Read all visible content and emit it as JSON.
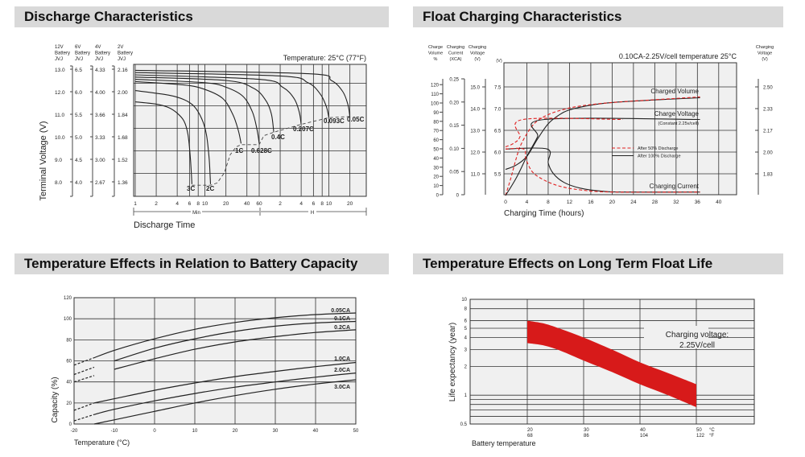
{
  "panels": [
    {
      "title": "Discharge Characteristics"
    },
    {
      "title": "Float Charging Characteristics"
    },
    {
      "title": "Temperature Effects in Relation to Battery Capacity"
    },
    {
      "title": "Temperature Effects on Long Term Float Life"
    }
  ],
  "colors": {
    "header_bg": "#d9d9d9",
    "plot_bg": "#f0f0f0",
    "grid": "#333333",
    "accent_red": "#e02020",
    "band_red": "#d71a1a"
  },
  "chart_data": [
    {
      "type": "line",
      "title": "Discharge Characteristics",
      "annotation": "Temperature: 25°C (77°F)",
      "xlabel": "Discharge Time",
      "ylabel": "Terminal Voltage (V)",
      "x_scale": "log",
      "x_unit": "minutes",
      "x_ticks_min": [
        "1",
        "2",
        "4",
        "6",
        "8",
        "10",
        "20",
        "40",
        "60"
      ],
      "x_ticks_h": [
        "2",
        "4",
        "6",
        "8",
        "10",
        "20"
      ],
      "x_range_labels": {
        "min": "Min",
        "h": "H"
      },
      "ylim": [
        7.4,
        13.2
      ],
      "grid": true,
      "y_axes": [
        {
          "header": [
            "12V",
            "Battery",
            "JVJ"
          ],
          "ticks": [
            "13.0",
            "12.0",
            "11.0",
            "10.0",
            "9.0",
            "8.0"
          ]
        },
        {
          "header": [
            "6V",
            "Battery",
            "JVJ"
          ],
          "ticks": [
            "6.5",
            "6.0",
            "5.5",
            "5.0",
            "4.5",
            "4.0"
          ]
        },
        {
          "header": [
            "4V",
            "Battery",
            "JVJ"
          ],
          "ticks": [
            "4.33",
            "4.00",
            "3.66",
            "3.33",
            "3.00",
            "2.67"
          ]
        },
        {
          "header": [
            "2V",
            "Battery",
            "JVJ"
          ],
          "ticks": [
            "2.16",
            "2.00",
            "1.84",
            "1.68",
            "1.52",
            "1.36"
          ]
        }
      ],
      "series": [
        {
          "name": "3C",
          "points": [
            [
              1,
              11.55
            ],
            [
              2,
              11.45
            ],
            [
              3,
              11.3
            ],
            [
              4,
              11.05
            ],
            [
              5,
              10.7
            ],
            [
              5.7,
              10.1
            ],
            [
              6.2,
              9.0
            ],
            [
              6.5,
              7.9
            ]
          ]
        },
        {
          "name": "2C",
          "points": [
            [
              1,
              12.05
            ],
            [
              3,
              11.85
            ],
            [
              5,
              11.65
            ],
            [
              7,
              11.35
            ],
            [
              9,
              10.8
            ],
            [
              10.5,
              10.1
            ],
            [
              11.5,
              9.0
            ],
            [
              12,
              7.9
            ]
          ]
        },
        {
          "name": "1C",
          "points": [
            [
              1,
              12.45
            ],
            [
              5,
              12.3
            ],
            [
              10,
              12.1
            ],
            [
              18,
              11.7
            ],
            [
              25,
              11.0
            ],
            [
              30,
              10.3
            ],
            [
              33,
              9.7
            ]
          ]
        },
        {
          "name": "0.628C",
          "points": [
            [
              1,
              12.55
            ],
            [
              10,
              12.4
            ],
            [
              20,
              12.2
            ],
            [
              35,
              11.8
            ],
            [
              48,
              11.1
            ],
            [
              56,
              10.3
            ],
            [
              60,
              9.7
            ]
          ]
        },
        {
          "name": "0.4C",
          "points": [
            [
              1,
              12.65
            ],
            [
              20,
              12.5
            ],
            [
              50,
              12.15
            ],
            [
              75,
              11.6
            ],
            [
              90,
              11.0
            ],
            [
              97,
              10.2
            ]
          ]
        },
        {
          "name": "0.207C",
          "points": [
            [
              1,
              12.75
            ],
            [
              60,
              12.55
            ],
            [
              130,
              12.2
            ],
            [
              190,
              11.7
            ],
            [
              225,
              11.1
            ],
            [
              240,
              10.55
            ]
          ]
        },
        {
          "name": "0.093C",
          "points": [
            [
              1,
              12.85
            ],
            [
              120,
              12.7
            ],
            [
              300,
              12.4
            ],
            [
              450,
              11.9
            ],
            [
              550,
              11.35
            ],
            [
              600,
              10.85
            ]
          ]
        },
        {
          "name": "0.05C",
          "points": [
            [
              1,
              12.95
            ],
            [
              300,
              12.8
            ],
            [
              650,
              12.5
            ],
            [
              950,
              12.0
            ],
            [
              1130,
              11.4
            ],
            [
              1200,
              10.85
            ]
          ]
        }
      ],
      "cutoff_line": [
        [
          6.5,
          7.85
        ],
        [
          12,
          7.85
        ],
        [
          15,
          7.95
        ],
        [
          19,
          8.4
        ],
        [
          23,
          9.2
        ],
        [
          28,
          9.55
        ],
        [
          33,
          9.65
        ],
        [
          60,
          9.65
        ],
        [
          70,
          10.05
        ],
        [
          97,
          10.2
        ],
        [
          240,
          10.55
        ],
        [
          600,
          10.85
        ],
        [
          1200,
          10.9
        ]
      ]
    },
    {
      "type": "line",
      "title": "Float Charging Characteristics",
      "annotation": "0.10CA-2.25V/cell  temperature 25°C",
      "xlabel": "Charging Time (hours)",
      "x_ticks": [
        0,
        4,
        8,
        12,
        16,
        20,
        24,
        28,
        32,
        36,
        40
      ],
      "xlim": [
        0,
        44
      ],
      "ylim": [
        5.0,
        7.75
      ],
      "grid": true,
      "left_axes": [
        {
          "header": [
            "Charge",
            "Volume",
            "%"
          ],
          "ticks": [
            "0",
            "10",
            "20",
            "30",
            "40",
            "50",
            "60",
            "70",
            "80",
            "90",
            "100",
            "110",
            "120"
          ]
        },
        {
          "header": [
            "Charging",
            "Current",
            "(XCA)"
          ],
          "ticks": [
            "0",
            "0.05",
            "0.10",
            "0.15",
            "0.20",
            "0.25"
          ]
        },
        {
          "header": [
            "Charging",
            "Voltage",
            "(V)"
          ],
          "ticks": [
            "11.0",
            "12.0",
            "13.0",
            "14.0",
            "15.0"
          ]
        },
        {
          "header": [
            "(V)"
          ],
          "ticks": [
            "5.5",
            "6.0",
            "6.5",
            "7.0",
            "7.5"
          ]
        }
      ],
      "right_axis": {
        "header": [
          "Charging",
          "Voltage",
          "(V)"
        ],
        "ticks": [
          "1.83",
          "2.00",
          "2.17",
          "2.33",
          "2.50"
        ]
      },
      "curve_labels": [
        "Charged Volume",
        "Charge Voltage",
        "(Constant 2.25v/cell)",
        "Charging Current"
      ],
      "legend": [
        {
          "name": "After  50% Discharge",
          "color": "#e02020",
          "style": "dashed"
        },
        {
          "name": "After 100% Discharge",
          "color": "#222222",
          "style": "solid"
        }
      ],
      "series": [
        {
          "curve": "Charged Volume",
          "case": "After 100% Discharge",
          "points": [
            [
              0,
              5.6
            ],
            [
              2,
              5.7
            ],
            [
              4,
              5.9
            ],
            [
              6,
              6.3
            ],
            [
              8,
              6.65
            ],
            [
              10,
              6.85
            ],
            [
              12,
              6.97
            ],
            [
              16,
              7.08
            ],
            [
              20,
              7.14
            ],
            [
              28,
              7.2
            ],
            [
              36.5,
              7.25
            ]
          ]
        },
        {
          "curve": "Charged Volume",
          "case": "After  50% Discharge",
          "points": [
            [
              0,
              5.0
            ],
            [
              1,
              5.4
            ],
            [
              2,
              5.85
            ],
            [
              3,
              6.2
            ],
            [
              5,
              6.6
            ],
            [
              7,
              6.8
            ],
            [
              10,
              6.95
            ],
            [
              14,
              7.06
            ],
            [
              20,
              7.14
            ],
            [
              30,
              7.22
            ],
            [
              36.5,
              7.27
            ]
          ]
        },
        {
          "curve": "Charge Voltage",
          "case": "After 100% Discharge",
          "points": [
            [
              0,
              5.0
            ],
            [
              2,
              5.4
            ],
            [
              4,
              5.9
            ],
            [
              6,
              6.35
            ],
            [
              7.3,
              6.75
            ],
            [
              36.5,
              6.75
            ]
          ]
        },
        {
          "curve": "Charge Voltage",
          "case": "After  50% Discharge",
          "points": [
            [
              0,
              6.12
            ],
            [
              1.5,
              6.2
            ],
            [
              2.7,
              6.35
            ],
            [
              3.3,
              6.75
            ],
            [
              22,
              6.75
            ]
          ]
        },
        {
          "curve": "Charging Current",
          "case": "After 100% Discharge",
          "points": [
            [
              0,
              6.07
            ],
            [
              7.8,
              6.07
            ],
            [
              8,
              5.75
            ],
            [
              9,
              5.5
            ],
            [
              11,
              5.3
            ],
            [
              14,
              5.17
            ],
            [
              18,
              5.1
            ],
            [
              22,
              5.08
            ],
            [
              36.5,
              5.08
            ]
          ]
        },
        {
          "curve": "Charging Current",
          "case": "After  50% Discharge",
          "points": [
            [
              0,
              6.07
            ],
            [
              3.4,
              6.07
            ],
            [
              3.8,
              5.85
            ],
            [
              5,
              5.55
            ],
            [
              7,
              5.37
            ],
            [
              10,
              5.22
            ],
            [
              14,
              5.13
            ],
            [
              20,
              5.08
            ],
            [
              36.5,
              5.08
            ]
          ]
        }
      ]
    },
    {
      "type": "line",
      "title": "Temperature Effects in Relation to Battery Capacity",
      "xlabel": "Temperature (°C)",
      "ylabel": "Capacity (%)",
      "xlim": [
        -20,
        50
      ],
      "ylim": [
        0,
        120
      ],
      "x_ticks": [
        "-20",
        "-10",
        "0",
        "10",
        "20",
        "30",
        "40",
        "50"
      ],
      "y_ticks": [
        "0",
        "20",
        "40",
        "60",
        "80",
        "100",
        "120"
      ],
      "grid": true,
      "series": [
        {
          "name": "0.05CA",
          "dashed_until": -15,
          "points": [
            [
              -20,
              56
            ],
            [
              -15,
              63
            ],
            [
              -10,
              70
            ],
            [
              0,
              81
            ],
            [
              10,
              90
            ],
            [
              20,
              96.5
            ],
            [
              30,
              101
            ],
            [
              40,
              104
            ],
            [
              50,
              105.5
            ]
          ]
        },
        {
          "name": "0.1CA",
          "dashed_until": -13,
          "points": [
            [
              -20,
              47
            ],
            [
              -15,
              54
            ],
            [
              -10,
              60
            ],
            [
              0,
              72
            ],
            [
              10,
              81
            ],
            [
              20,
              88
            ],
            [
              30,
              93
            ],
            [
              40,
              96
            ],
            [
              50,
              97.5
            ]
          ]
        },
        {
          "name": "0.2CA",
          "dashed_until": -14,
          "points": [
            [
              -20,
              40
            ],
            [
              -15,
              46
            ],
            [
              -10,
              52
            ],
            [
              0,
              62
            ],
            [
              10,
              71
            ],
            [
              20,
              78
            ],
            [
              30,
              83
            ],
            [
              40,
              87
            ],
            [
              50,
              89.5
            ]
          ]
        },
        {
          "name": "1.0CA",
          "dashed_until": -15,
          "points": [
            [
              -20,
              13
            ],
            [
              -15,
              20
            ],
            [
              -10,
              24
            ],
            [
              0,
              32
            ],
            [
              10,
              39
            ],
            [
              20,
              45
            ],
            [
              30,
              50
            ],
            [
              40,
              54.5
            ],
            [
              50,
              58.5
            ]
          ]
        },
        {
          "name": "2.0CA",
          "dashed_until": -15,
          "points": [
            [
              -20,
              3
            ],
            [
              -15,
              9
            ],
            [
              -10,
              14
            ],
            [
              0,
              22
            ],
            [
              10,
              29
            ],
            [
              20,
              35
            ],
            [
              30,
              40
            ],
            [
              40,
              44.5
            ],
            [
              50,
              48.5
            ]
          ]
        },
        {
          "name": "3.0CA",
          "dashed_until": -15,
          "points": [
            [
              -15,
              0
            ],
            [
              -10,
              4
            ],
            [
              0,
              12
            ],
            [
              10,
              20
            ],
            [
              20,
              27
            ],
            [
              30,
              33
            ],
            [
              40,
              38
            ],
            [
              50,
              42
            ]
          ]
        }
      ]
    },
    {
      "type": "area",
      "title": "Temperature Effects on Long Term Float Life",
      "xlabel": "Battery temperature",
      "ylabel": "Life expectancy (year)",
      "annotation": [
        "Charging voltage:",
        "2.25V/cell"
      ],
      "y_scale": "log",
      "xlim": [
        10,
        60
      ],
      "ylim": [
        0.5,
        10
      ],
      "x_ticks": [
        {
          "c": "20",
          "f": "68"
        },
        {
          "c": "30",
          "f": "86"
        },
        {
          "c": "40",
          "f": "104"
        },
        {
          "c": "50",
          "f": "122"
        }
      ],
      "x_units": {
        "c": "°C",
        "f": "°F"
      },
      "y_ticks": [
        "10",
        "8",
        "6",
        "5",
        "4",
        "3",
        "2",
        "1",
        "0.5"
      ],
      "grid": true,
      "band_upper": [
        [
          20,
          6.0
        ],
        [
          23,
          5.6
        ],
        [
          26,
          4.9
        ],
        [
          30,
          4.0
        ],
        [
          35,
          3.0
        ],
        [
          40,
          2.2
        ],
        [
          45,
          1.7
        ],
        [
          50,
          1.3
        ]
      ],
      "band_lower": [
        [
          20,
          3.5
        ],
        [
          23,
          3.3
        ],
        [
          26,
          2.9
        ],
        [
          30,
          2.3
        ],
        [
          35,
          1.75
        ],
        [
          40,
          1.3
        ],
        [
          45,
          1.0
        ],
        [
          50,
          0.75
        ]
      ]
    }
  ]
}
